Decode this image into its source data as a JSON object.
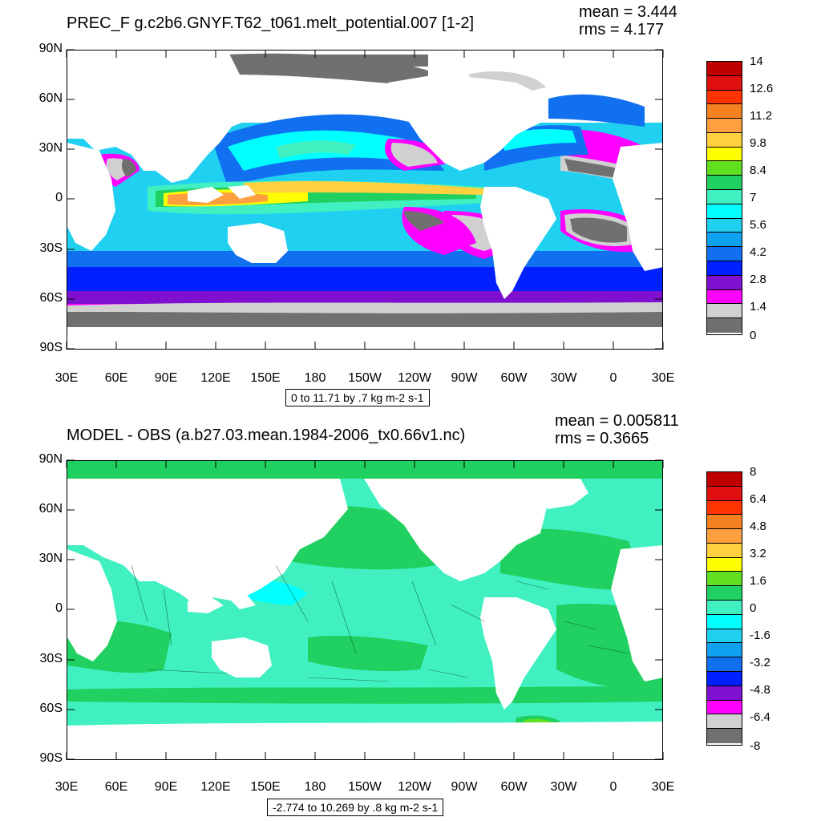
{
  "panels": [
    {
      "title": "PREC_F g.c2b6.GNYF.T62_t061.melt_potential.007 [1-2]",
      "mean": "mean = 3.444",
      "rms": "rms = 4.177",
      "lat_ticks": [
        "90N",
        "60N",
        "30N",
        "0",
        "30S",
        "60S",
        "90S"
      ],
      "lon_ticks": [
        "30E",
        "60E",
        "90E",
        "120E",
        "150E",
        "180",
        "150W",
        "120W",
        "90W",
        "60W",
        "30W",
        "0",
        "30E"
      ],
      "info": "0 to 11.71 by .7 kg m-2 s-1",
      "colorbar_labels": [
        "14",
        "12.6",
        "11.2",
        "9.8",
        "8.4",
        "7",
        "5.6",
        "4.2",
        "2.8",
        "1.4",
        "0"
      ],
      "colorbar_colors": [
        "#c00000",
        "#e01010",
        "#ff3300",
        "#f58020",
        "#ffa040",
        "#ffd040",
        "#ffff00",
        "#60e020",
        "#20d060",
        "#40f0c0",
        "#00ffff",
        "#20d0f0",
        "#10a0f0",
        "#1070f0",
        "#0020ff",
        "#8010d0",
        "#ff00ff",
        "#d0d0d0",
        "#707070"
      ]
    },
    {
      "title": "MODEL - OBS (a.b27.03.mean.1984-2006_tx0.66v1.nc)",
      "mean": "mean = 0.005811",
      "rms": "rms = 0.3665",
      "lat_ticks": [
        "90N",
        "60N",
        "30N",
        "0",
        "30S",
        "60S",
        "90S"
      ],
      "lon_ticks": [
        "30E",
        "60E",
        "90E",
        "120E",
        "150E",
        "180",
        "150W",
        "120W",
        "90W",
        "60W",
        "30W",
        "0",
        "30E"
      ],
      "info": "-2.774 to 10.269 by .8 kg m-2 s-1",
      "colorbar_labels": [
        "8",
        "6.4",
        "4.8",
        "3.2",
        "1.6",
        "0",
        "-1.6",
        "-3.2",
        "-4.8",
        "-6.4",
        "-8"
      ],
      "colorbar_colors": [
        "#c00000",
        "#e01010",
        "#ff3300",
        "#f58020",
        "#ffa040",
        "#ffd040",
        "#ffff00",
        "#60e020",
        "#20d060",
        "#40f0c0",
        "#00ffff",
        "#20d0f0",
        "#10a0f0",
        "#1070f0",
        "#0020ff",
        "#8010d0",
        "#ff00ff",
        "#d0d0d0",
        "#707070"
      ]
    }
  ],
  "map_colors": {
    "land": "#ffffff",
    "ice_gray": "#707070",
    "light_gray": "#d0d0d0",
    "magenta": "#ff00ff",
    "purple": "#8010d0",
    "blue": "#0020ff",
    "mid_blue": "#1070f0",
    "light_blue": "#20d0f0",
    "cyan": "#00ffff",
    "aqua": "#40f0c0",
    "green": "#20d060",
    "yellow": "#ffff00",
    "orange": "#ffa040"
  }
}
